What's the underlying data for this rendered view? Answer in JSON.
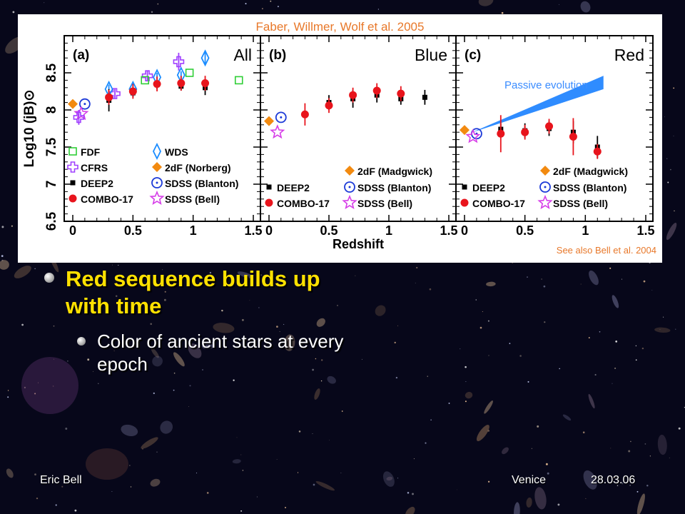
{
  "slide": {
    "credit_top": "Faber, Willmer, Wolf et al. 2005",
    "credit_bottom": "See also Bell et al. 2004",
    "bullet_main": "Red sequence builds up with time",
    "bullet_sub": "Color of ancient stars at every epoch",
    "footer_left": "Eric Bell",
    "footer_venue": "Venice",
    "footer_date": "28.03.06"
  },
  "chart_data": {
    "type": "scatter",
    "ylabel": "Log10 (jB)⊙",
    "xlabel": "Redshift",
    "xlim": [
      0,
      1.5
    ],
    "ylim": [
      6.5,
      9.0
    ],
    "x_ticks": [
      "0",
      "0.5",
      "1",
      "1.5"
    ],
    "y_ticks": [
      "6.5",
      "7",
      "7.5",
      "8",
      "8.5"
    ],
    "colors": {
      "orange": "#f28a10",
      "blue": "#1c3ad8",
      "magenta": "#d63ee8",
      "purple": "#a040ff",
      "green": "#2fce36",
      "cyan": "#1a8cff",
      "red": "#e8141c",
      "black": "#000000"
    },
    "panels": [
      {
        "label": "(a)",
        "title": "All",
        "legend": [
          {
            "marker": "open-square",
            "color": "green",
            "text": "FDF"
          },
          {
            "marker": "open-diamond",
            "color": "cyan",
            "text": "WDS"
          },
          {
            "marker": "cross",
            "color": "purple",
            "text": "CFRS"
          },
          {
            "marker": "filled-diamond",
            "color": "orange",
            "text": "2dF (Norberg)"
          },
          {
            "marker": "small-square",
            "color": "black",
            "text": "DEEP2"
          },
          {
            "marker": "dot-circle",
            "color": "blue",
            "text": "SDSS (Blanton)"
          },
          {
            "marker": "filled-circle",
            "color": "red",
            "text": "COMBO-17"
          },
          {
            "marker": "open-star",
            "color": "magenta",
            "text": "SDSS (Bell)"
          }
        ],
        "series": [
          {
            "name": "2dF (Norberg)",
            "marker": "filled-diamond",
            "color": "orange",
            "points": [
              [
                0.0,
                8.08
              ]
            ]
          },
          {
            "name": "SDSS (Blanton)",
            "marker": "dot-circle",
            "color": "blue",
            "points": [
              [
                0.1,
                8.08
              ]
            ]
          },
          {
            "name": "SDSS (Bell)",
            "marker": "open-star",
            "color": "magenta",
            "points": [
              [
                0.07,
                7.95
              ]
            ]
          },
          {
            "name": "CFRS",
            "marker": "cross",
            "color": "purple",
            "points": [
              [
                0.05,
                7.9,
                0.1
              ],
              [
                0.35,
                8.22,
                0.06
              ],
              [
                0.62,
                8.46,
                0.06
              ],
              [
                0.88,
                8.65,
                0.12
              ]
            ]
          },
          {
            "name": "WDS",
            "marker": "open-diamond",
            "color": "cyan",
            "points": [
              [
                0.3,
                8.28,
                0.06
              ],
              [
                0.5,
                8.28,
                0.08
              ],
              [
                0.7,
                8.44,
                0.06
              ],
              [
                0.9,
                8.47,
                0.05
              ],
              [
                1.1,
                8.7,
                0.09
              ]
            ]
          },
          {
            "name": "FDF",
            "marker": "open-square",
            "color": "green",
            "points": [
              [
                0.6,
                8.4
              ],
              [
                0.97,
                8.5
              ],
              [
                1.38,
                8.4
              ]
            ]
          },
          {
            "name": "DEEP2",
            "marker": "small-square",
            "color": "black",
            "points": [
              [
                0.3,
                8.13,
                0.15
              ],
              [
                0.5,
                8.23,
                0.06
              ],
              [
                0.7,
                8.34,
                0.06
              ],
              [
                0.9,
                8.32,
                0.06
              ],
              [
                1.1,
                8.3,
                0.1
              ]
            ]
          },
          {
            "name": "COMBO-17",
            "marker": "filled-circle",
            "color": "red",
            "points": [
              [
                0.3,
                8.17,
                0.1
              ],
              [
                0.5,
                8.25,
                0.1
              ],
              [
                0.7,
                8.35,
                0.1
              ],
              [
                0.9,
                8.36,
                0.1
              ],
              [
                1.1,
                8.36,
                0.1
              ]
            ]
          }
        ]
      },
      {
        "label": "(b)",
        "title": "Blue",
        "legend": [
          {
            "marker": "filled-diamond",
            "color": "orange",
            "text": "2dF (Madgwick)"
          },
          {
            "marker": "small-square",
            "color": "black",
            "text": "DEEP2"
          },
          {
            "marker": "dot-circle",
            "color": "blue",
            "text": "SDSS (Blanton)"
          },
          {
            "marker": "filled-circle",
            "color": "red",
            "text": "COMBO-17"
          },
          {
            "marker": "open-star",
            "color": "magenta",
            "text": "SDSS (Bell)"
          }
        ],
        "series": [
          {
            "name": "2dF (Madgwick)",
            "marker": "filled-diamond",
            "color": "orange",
            "points": [
              [
                0.0,
                7.85
              ]
            ]
          },
          {
            "name": "SDSS (Blanton)",
            "marker": "dot-circle",
            "color": "blue",
            "points": [
              [
                0.1,
                7.9
              ]
            ]
          },
          {
            "name": "SDSS (Bell)",
            "marker": "open-star",
            "color": "magenta",
            "points": [
              [
                0.07,
                7.7
              ]
            ]
          },
          {
            "name": "DEEP2",
            "marker": "small-square",
            "color": "black",
            "points": [
              [
                0.5,
                8.1,
                0.1
              ],
              [
                0.7,
                8.15,
                0.12
              ],
              [
                0.9,
                8.2,
                0.1
              ],
              [
                1.1,
                8.15,
                0.08
              ],
              [
                1.3,
                8.17,
                0.1
              ]
            ]
          },
          {
            "name": "COMBO-17",
            "marker": "filled-circle",
            "color": "red",
            "points": [
              [
                0.3,
                7.94,
                0.15
              ],
              [
                0.5,
                8.06,
                0.1
              ],
              [
                0.7,
                8.2,
                0.1
              ],
              [
                0.9,
                8.26,
                0.1
              ],
              [
                1.1,
                8.22,
                0.1
              ]
            ]
          }
        ]
      },
      {
        "label": "(c)",
        "title": "Red",
        "annotation": "Passive evolution",
        "legend": [
          {
            "marker": "filled-diamond",
            "color": "orange",
            "text": "2dF (Madgwick)"
          },
          {
            "marker": "small-square",
            "color": "black",
            "text": "DEEP2"
          },
          {
            "marker": "dot-circle",
            "color": "blue",
            "text": "SDSS (Blanton)"
          },
          {
            "marker": "filled-circle",
            "color": "red",
            "text": "COMBO-17"
          },
          {
            "marker": "open-star",
            "color": "magenta",
            "text": "SDSS (Bell)"
          }
        ],
        "band": {
          "start": [
            0.05,
            7.69
          ],
          "end_upper": [
            1.15,
            8.46
          ],
          "end_lower": [
            1.15,
            8.28
          ],
          "color": "#2f8cff"
        },
        "series": [
          {
            "name": "2dF (Madgwick)",
            "marker": "filled-diamond",
            "color": "orange",
            "points": [
              [
                0.0,
                7.73
              ]
            ]
          },
          {
            "name": "SDSS (Blanton)",
            "marker": "dot-circle",
            "color": "blue",
            "points": [
              [
                0.1,
                7.68
              ]
            ]
          },
          {
            "name": "SDSS (Bell)",
            "marker": "open-star",
            "color": "magenta",
            "points": [
              [
                0.07,
                7.64
              ]
            ]
          },
          {
            "name": "DEEP2",
            "marker": "small-square",
            "color": "black",
            "points": [
              [
                0.3,
                7.74,
                0.08
              ],
              [
                0.5,
                7.72,
                0.1
              ],
              [
                0.7,
                7.75,
                0.1
              ],
              [
                0.9,
                7.7,
                0.15
              ],
              [
                1.1,
                7.5,
                0.15
              ]
            ]
          },
          {
            "name": "COMBO-17",
            "marker": "filled-circle",
            "color": "red",
            "points": [
              [
                0.3,
                7.68,
                0.25
              ],
              [
                0.5,
                7.7,
                0.1
              ],
              [
                0.7,
                7.78,
                0.1
              ],
              [
                0.9,
                7.64,
                0.25
              ],
              [
                1.1,
                7.44,
                0.1
              ]
            ]
          }
        ]
      }
    ]
  }
}
